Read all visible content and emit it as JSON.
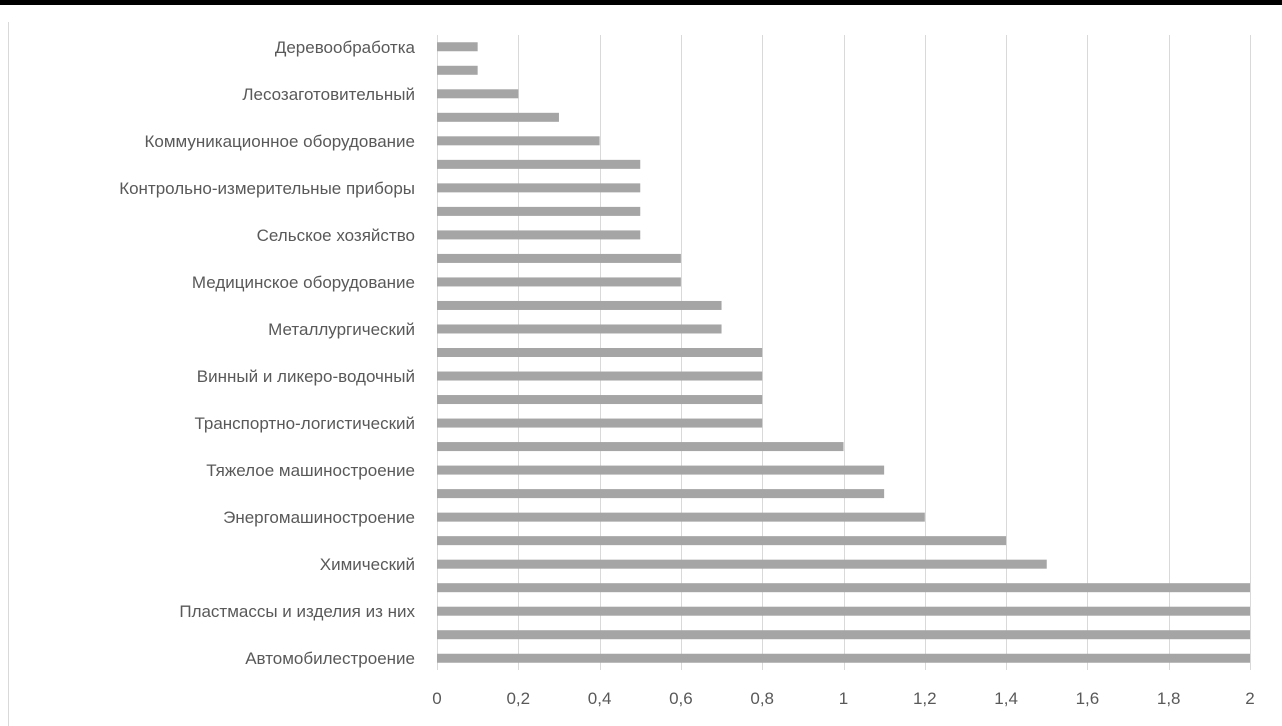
{
  "chart_data": {
    "type": "bar",
    "orientation": "horizontal",
    "categories": [
      "Автомобилестроение",
      "",
      "Пластмассы и изделия из них",
      "",
      "Химический",
      "",
      "Энергомашиностроение",
      "",
      "Тяжелое машиностроение",
      "",
      "Транспортно-логистический",
      "",
      "Винный и ликеро-водочный",
      "",
      "Металлургический",
      "",
      "Медицинское оборудование",
      "",
      "Сельское хозяйство",
      "",
      "Контрольно-измерительные приборы",
      "",
      "Коммуникационное оборудование",
      "",
      "Лесозаготовительный",
      "",
      "Деревообработка"
    ],
    "values": [
      2,
      2,
      2,
      2,
      1.5,
      1.4,
      1.2,
      1.1,
      1.1,
      1,
      0.8,
      0.8,
      0.8,
      0.8,
      0.7,
      0.7,
      0.6,
      0.6,
      0.5,
      0.5,
      0.5,
      0.5,
      0.4,
      0.3,
      0.2,
      0.1,
      0.1
    ],
    "xlim": [
      0,
      2
    ],
    "xticks": [
      0,
      0.2,
      0.4,
      0.6,
      0.8,
      1,
      1.2,
      1.4,
      1.6,
      1.8,
      2
    ],
    "xtick_labels": [
      "0",
      "0,2",
      "0,4",
      "0,6",
      "0,8",
      "1",
      "1,2",
      "1,4",
      "1,6",
      "1,8",
      "2"
    ],
    "grid": true,
    "bar_color": "#a5a5a5",
    "grid_color": "#d9d9d9",
    "label_color": "#595959",
    "title": "",
    "xlabel": "",
    "ylabel": ""
  }
}
